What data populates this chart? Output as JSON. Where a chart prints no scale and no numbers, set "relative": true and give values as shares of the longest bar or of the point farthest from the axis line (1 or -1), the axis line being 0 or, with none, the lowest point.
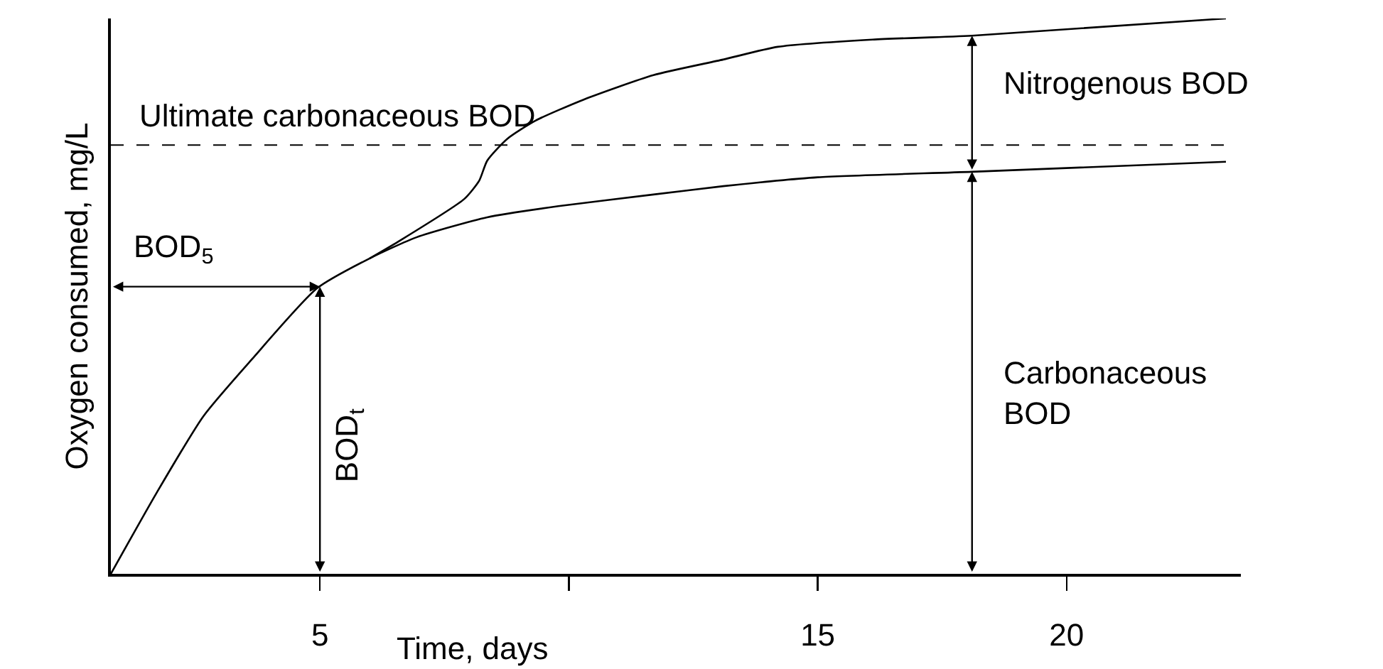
{
  "chart_data": {
    "type": "line",
    "relative": true,
    "xlabel": "Time, days",
    "ylabel": "Oxygen consumed, mg/L",
    "xlim": [
      0.8,
      23.5
    ],
    "xticks": [
      5,
      {
        "value": 10,
        "label": null
      },
      15,
      20
    ],
    "tick_labels": "x",
    "line_style": "solid",
    "marker": "none",
    "series": [
      {
        "color": "#000000",
        "x": [
          0.8,
          1.72,
          2.66,
          3.63,
          4.94,
          6.0,
          6.94,
          8.36,
          9.79,
          11.7,
          13.1,
          15.0,
          18.1,
          23.2
        ],
        "values": [
          0,
          0.146,
          0.284,
          0.386,
          0.514,
          0.568,
          0.606,
          0.642,
          0.662,
          0.683,
          0.698,
          0.714,
          0.724,
          0.742
        ]
      },
      {
        "color": "#000000",
        "x": [
          6.0,
          6.57,
          7.9,
          8.2,
          8.36,
          8.76,
          9.33,
          10.3,
          11.7,
          13.1,
          14.2,
          16.1,
          18.1,
          23.2
        ],
        "values": [
          0.568,
          0.598,
          0.675,
          0.708,
          0.744,
          0.783,
          0.816,
          0.854,
          0.898,
          0.926,
          0.949,
          0.962,
          0.969,
          1
        ]
      }
    ],
    "ref_lines": [
      {
        "axis": "y",
        "value": 0.772,
        "label": "Ultimate carbonaceous BOD",
        "color": "#000000",
        "line_style": "dashed"
      }
    ],
    "annotations": [
      "BOD$_{5}$",
      "BOD$_{t}$",
      "Carbonaceous BOD",
      "Nitrogenous BOD"
    ]
  }
}
